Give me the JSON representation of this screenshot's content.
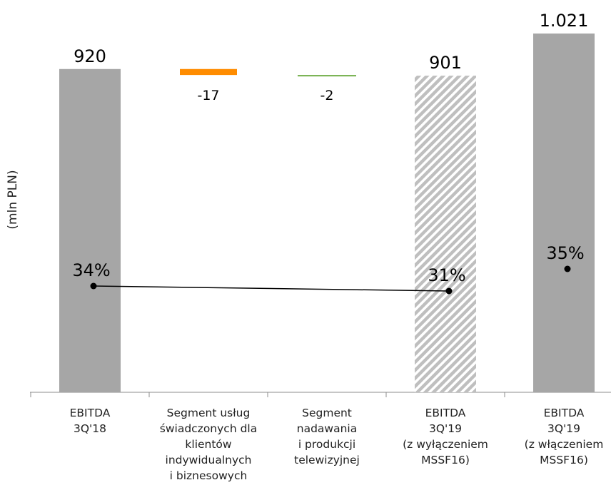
{
  "chart_data": {
    "type": "bar",
    "subtype": "waterfall",
    "ylabel": "(mln PLN)",
    "categories": [
      "EBITDA\n3Q'18",
      "Segment usług\nświadczonych dla\nklientów\nindywidualnych\ni biznesowych",
      "Segment\nnadawania\ni produkcji\ntelewizyjnej",
      "EBITDA\n3Q'19\n(z wyłączeniem\nMSSF16)",
      "EBITDA\n3Q'19\n(z włączeniem\nMSSF16)"
    ],
    "values": [
      920,
      -17,
      -2,
      901,
      1021
    ],
    "value_labels": [
      "920",
      "-17",
      "-2",
      "901",
      "1.021"
    ],
    "margin_labels": [
      "34%",
      "",
      "",
      "31%",
      "35%"
    ],
    "margins": [
      34,
      null,
      null,
      31,
      35
    ],
    "ylim": [
      0,
      1021
    ],
    "colors": {
      "total": "#a6a6a6",
      "hatched_total": "#bfbfbf",
      "negative_orange": "#ff8c00",
      "negative_green": "#70ad47",
      "line": "#000000"
    }
  }
}
